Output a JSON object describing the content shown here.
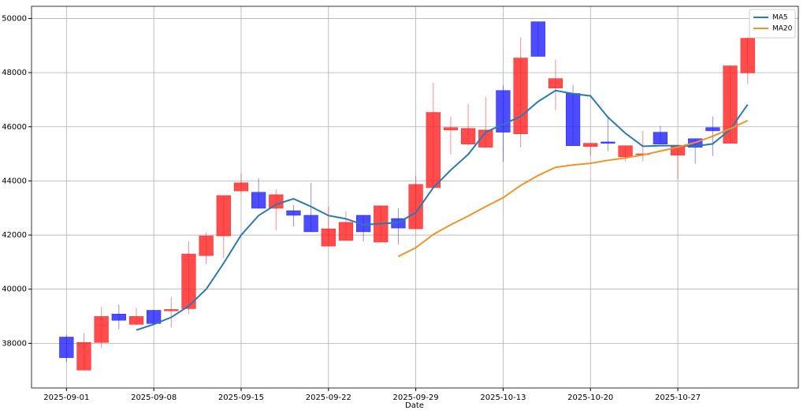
{
  "chart_data": {
    "type": "candlestick",
    "xlabel": "Date",
    "xlim": [
      -2,
      41.9
    ],
    "ylim": [
      36350,
      50450
    ],
    "yticks": [
      38000,
      40000,
      42000,
      44000,
      46000,
      48000,
      50000
    ],
    "xticks": [
      {
        "value": 0,
        "label": "2025-09-01"
      },
      {
        "value": 5,
        "label": "2025-09-08"
      },
      {
        "value": 10,
        "label": "2025-09-15"
      },
      {
        "value": 15,
        "label": "2025-09-22"
      },
      {
        "value": 20,
        "label": "2025-09-29"
      },
      {
        "value": 25,
        "label": "2025-10-13"
      },
      {
        "value": 30,
        "label": "2025-10-20"
      },
      {
        "value": 35,
        "label": "2025-10-27"
      }
    ],
    "grid": true,
    "legend": "upper right",
    "up_color": "#ff2020",
    "down_color": "#2020ff",
    "open": [
      38230,
      37010,
      38030,
      39080,
      38700,
      39220,
      39200,
      39280,
      41240,
      41970,
      43630,
      43580,
      42990,
      42900,
      42730,
      41590,
      41800,
      42730,
      41740,
      42610,
      42230,
      43750,
      45880,
      45360,
      45240,
      47340,
      45740,
      49880,
      47430,
      47230,
      45270,
      45440,
      44890,
      44980,
      45800,
      44950,
      45560,
      45970,
      45390,
      47990
    ],
    "high": [
      38300,
      38380,
      39340,
      39430,
      39310,
      39220,
      39720,
      41770,
      42090,
      43460,
      44280,
      44100,
      43690,
      43110,
      43930,
      43050,
      42880,
      42730,
      43080,
      42990,
      44190,
      47630,
      46380,
      46850,
      47110,
      47520,
      49300,
      49880,
      48480,
      47550,
      45390,
      46410,
      45300,
      45850,
      46030,
      45270,
      45560,
      46380,
      48250,
      49300
    ],
    "low": [
      37300,
      37010,
      37820,
      38520,
      38670,
      38700,
      38580,
      39080,
      40920,
      41150,
      43550,
      42990,
      42170,
      42320,
      42120,
      41590,
      41800,
      41770,
      41740,
      41650,
      42230,
      43750,
      44980,
      45300,
      45240,
      44710,
      45240,
      48600,
      46610,
      45300,
      44930,
      45100,
      44720,
      44720,
      45360,
      44070,
      44630,
      44920,
      45390,
      47580
    ],
    "close": [
      37470,
      38030,
      38990,
      38850,
      38990,
      38730,
      39250,
      41300,
      41970,
      43460,
      43930,
      42990,
      43490,
      42730,
      42120,
      42230,
      42470,
      42120,
      43080,
      42260,
      43870,
      46530,
      45970,
      45940,
      45880,
      45800,
      48540,
      48600,
      47780,
      45300,
      45390,
      45390,
      45300,
      45000,
      45360,
      45270,
      45240,
      45850,
      48250,
      49270
    ],
    "series": [
      {
        "name": "MA5",
        "color": "#2a7ab0",
        "values": [
          null,
          null,
          null,
          null,
          38490,
          38700,
          38960,
          39380,
          40000,
          40960,
          42000,
          42720,
          43130,
          43340,
          43050,
          42720,
          42600,
          42380,
          42420,
          42460,
          42830,
          43750,
          44400,
          44980,
          45800,
          46090,
          46380,
          46930,
          47340,
          47220,
          47140,
          46350,
          45760,
          45280,
          45300,
          45300,
          45280,
          45370,
          45900,
          46820
        ]
      },
      {
        "name": "MA20",
        "color": "#f0932b",
        "values": [
          null,
          null,
          null,
          null,
          null,
          null,
          null,
          null,
          null,
          null,
          null,
          null,
          null,
          null,
          null,
          null,
          null,
          null,
          null,
          41210,
          41530,
          42020,
          42380,
          42700,
          43050,
          43380,
          43830,
          44200,
          44500,
          44590,
          44650,
          44760,
          44850,
          44960,
          45100,
          45250,
          45420,
          45650,
          45930,
          46230
        ]
      }
    ]
  }
}
